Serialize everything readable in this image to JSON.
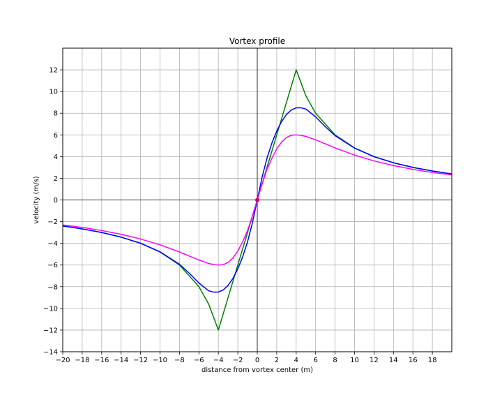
{
  "chart_data": {
    "type": "line",
    "title": "Vortex profile",
    "xlabel": "distance from vortex center (m)",
    "ylabel": "velocity (m/s)",
    "xlim": [
      -20,
      20
    ],
    "ylim": [
      -14,
      14
    ],
    "xticks": [
      -20,
      -18,
      -16,
      -14,
      -12,
      -10,
      -8,
      -6,
      -4,
      -2,
      0,
      2,
      4,
      6,
      8,
      10,
      12,
      14,
      16,
      18
    ],
    "yticks": [
      -14,
      -12,
      -10,
      -8,
      -6,
      -4,
      -2,
      0,
      2,
      4,
      6,
      8,
      10,
      12
    ],
    "tick_labels_x": [
      "−20",
      "−18",
      "−16",
      "−14",
      "−12",
      "−10",
      "−8",
      "−6",
      "−4",
      "−2",
      "0",
      "2",
      "4",
      "6",
      "8",
      "10",
      "12",
      "14",
      "16",
      "18"
    ],
    "tick_labels_y": [
      "−14",
      "−12",
      "−10",
      "−8",
      "−6",
      "−4",
      "−2",
      "0",
      "2",
      "4",
      "6",
      "8",
      "10",
      "12"
    ],
    "grid": true,
    "series": [
      {
        "color": "#008000",
        "x": [
          -20,
          -18,
          -16,
          -14,
          -12,
          -10,
          -8,
          -6,
          -5,
          -4,
          -3,
          -2,
          -1,
          0,
          1,
          2,
          3,
          4,
          5,
          6,
          8,
          10,
          12,
          14,
          16,
          18,
          20
        ],
        "values": [
          -2.4,
          -2.67,
          -3.0,
          -3.43,
          -4.0,
          -4.8,
          -6.0,
          -8.0,
          -9.6,
          -12.0,
          -9.0,
          -6.0,
          -3.0,
          0,
          3.0,
          6.0,
          9.0,
          12.0,
          9.6,
          8.0,
          6.0,
          4.8,
          4.0,
          3.43,
          3.0,
          2.67,
          2.4
        ]
      },
      {
        "color": "#0000ff",
        "x": [
          -20,
          -18,
          -16,
          -14,
          -12,
          -10,
          -8,
          -7,
          -6,
          -5,
          -4.5,
          -4,
          -3.5,
          -3,
          -2.5,
          -2,
          -1.5,
          -1,
          -0.5,
          0,
          0.5,
          1,
          1.5,
          2,
          2.5,
          3,
          3.5,
          4,
          4.5,
          5,
          6,
          7,
          8,
          10,
          12,
          14,
          16,
          18,
          20
        ],
        "values": [
          -2.4,
          -2.67,
          -3.0,
          -3.43,
          -3.99,
          -4.78,
          -5.93,
          -6.75,
          -7.66,
          -8.38,
          -8.5,
          -8.5,
          -8.3,
          -7.88,
          -7.23,
          -6.35,
          -5.24,
          -3.86,
          -2.11,
          0,
          2.11,
          3.86,
          5.24,
          6.35,
          7.23,
          7.88,
          8.3,
          8.5,
          8.5,
          8.38,
          7.66,
          6.75,
          5.93,
          4.78,
          3.99,
          3.43,
          3.0,
          2.67,
          2.4
        ]
      },
      {
        "color": "#ff00ff",
        "x": [
          -20,
          -18,
          -16,
          -14,
          -12,
          -10,
          -8,
          -7,
          -6,
          -5,
          -4.5,
          -4,
          -3.5,
          -3,
          -2.5,
          -2,
          -1.5,
          -1,
          -0.5,
          0,
          0.5,
          1,
          1.5,
          2,
          2.5,
          3,
          3.5,
          4,
          4.5,
          5,
          6,
          7,
          8,
          10,
          12,
          14,
          16,
          18,
          20
        ],
        "values": [
          -2.31,
          -2.53,
          -2.82,
          -3.17,
          -3.6,
          -4.14,
          -4.8,
          -5.17,
          -5.54,
          -5.86,
          -5.95,
          -6.0,
          -5.97,
          -5.76,
          -5.34,
          -4.71,
          -3.84,
          -2.82,
          -1.47,
          0,
          1.47,
          2.82,
          3.84,
          4.71,
          5.34,
          5.76,
          5.97,
          6.0,
          5.95,
          5.86,
          5.54,
          5.17,
          4.8,
          4.14,
          3.6,
          3.17,
          2.82,
          2.53,
          2.31
        ]
      }
    ],
    "markers": [
      {
        "x": 0,
        "y": 0,
        "color": "#cc0066"
      }
    ]
  }
}
